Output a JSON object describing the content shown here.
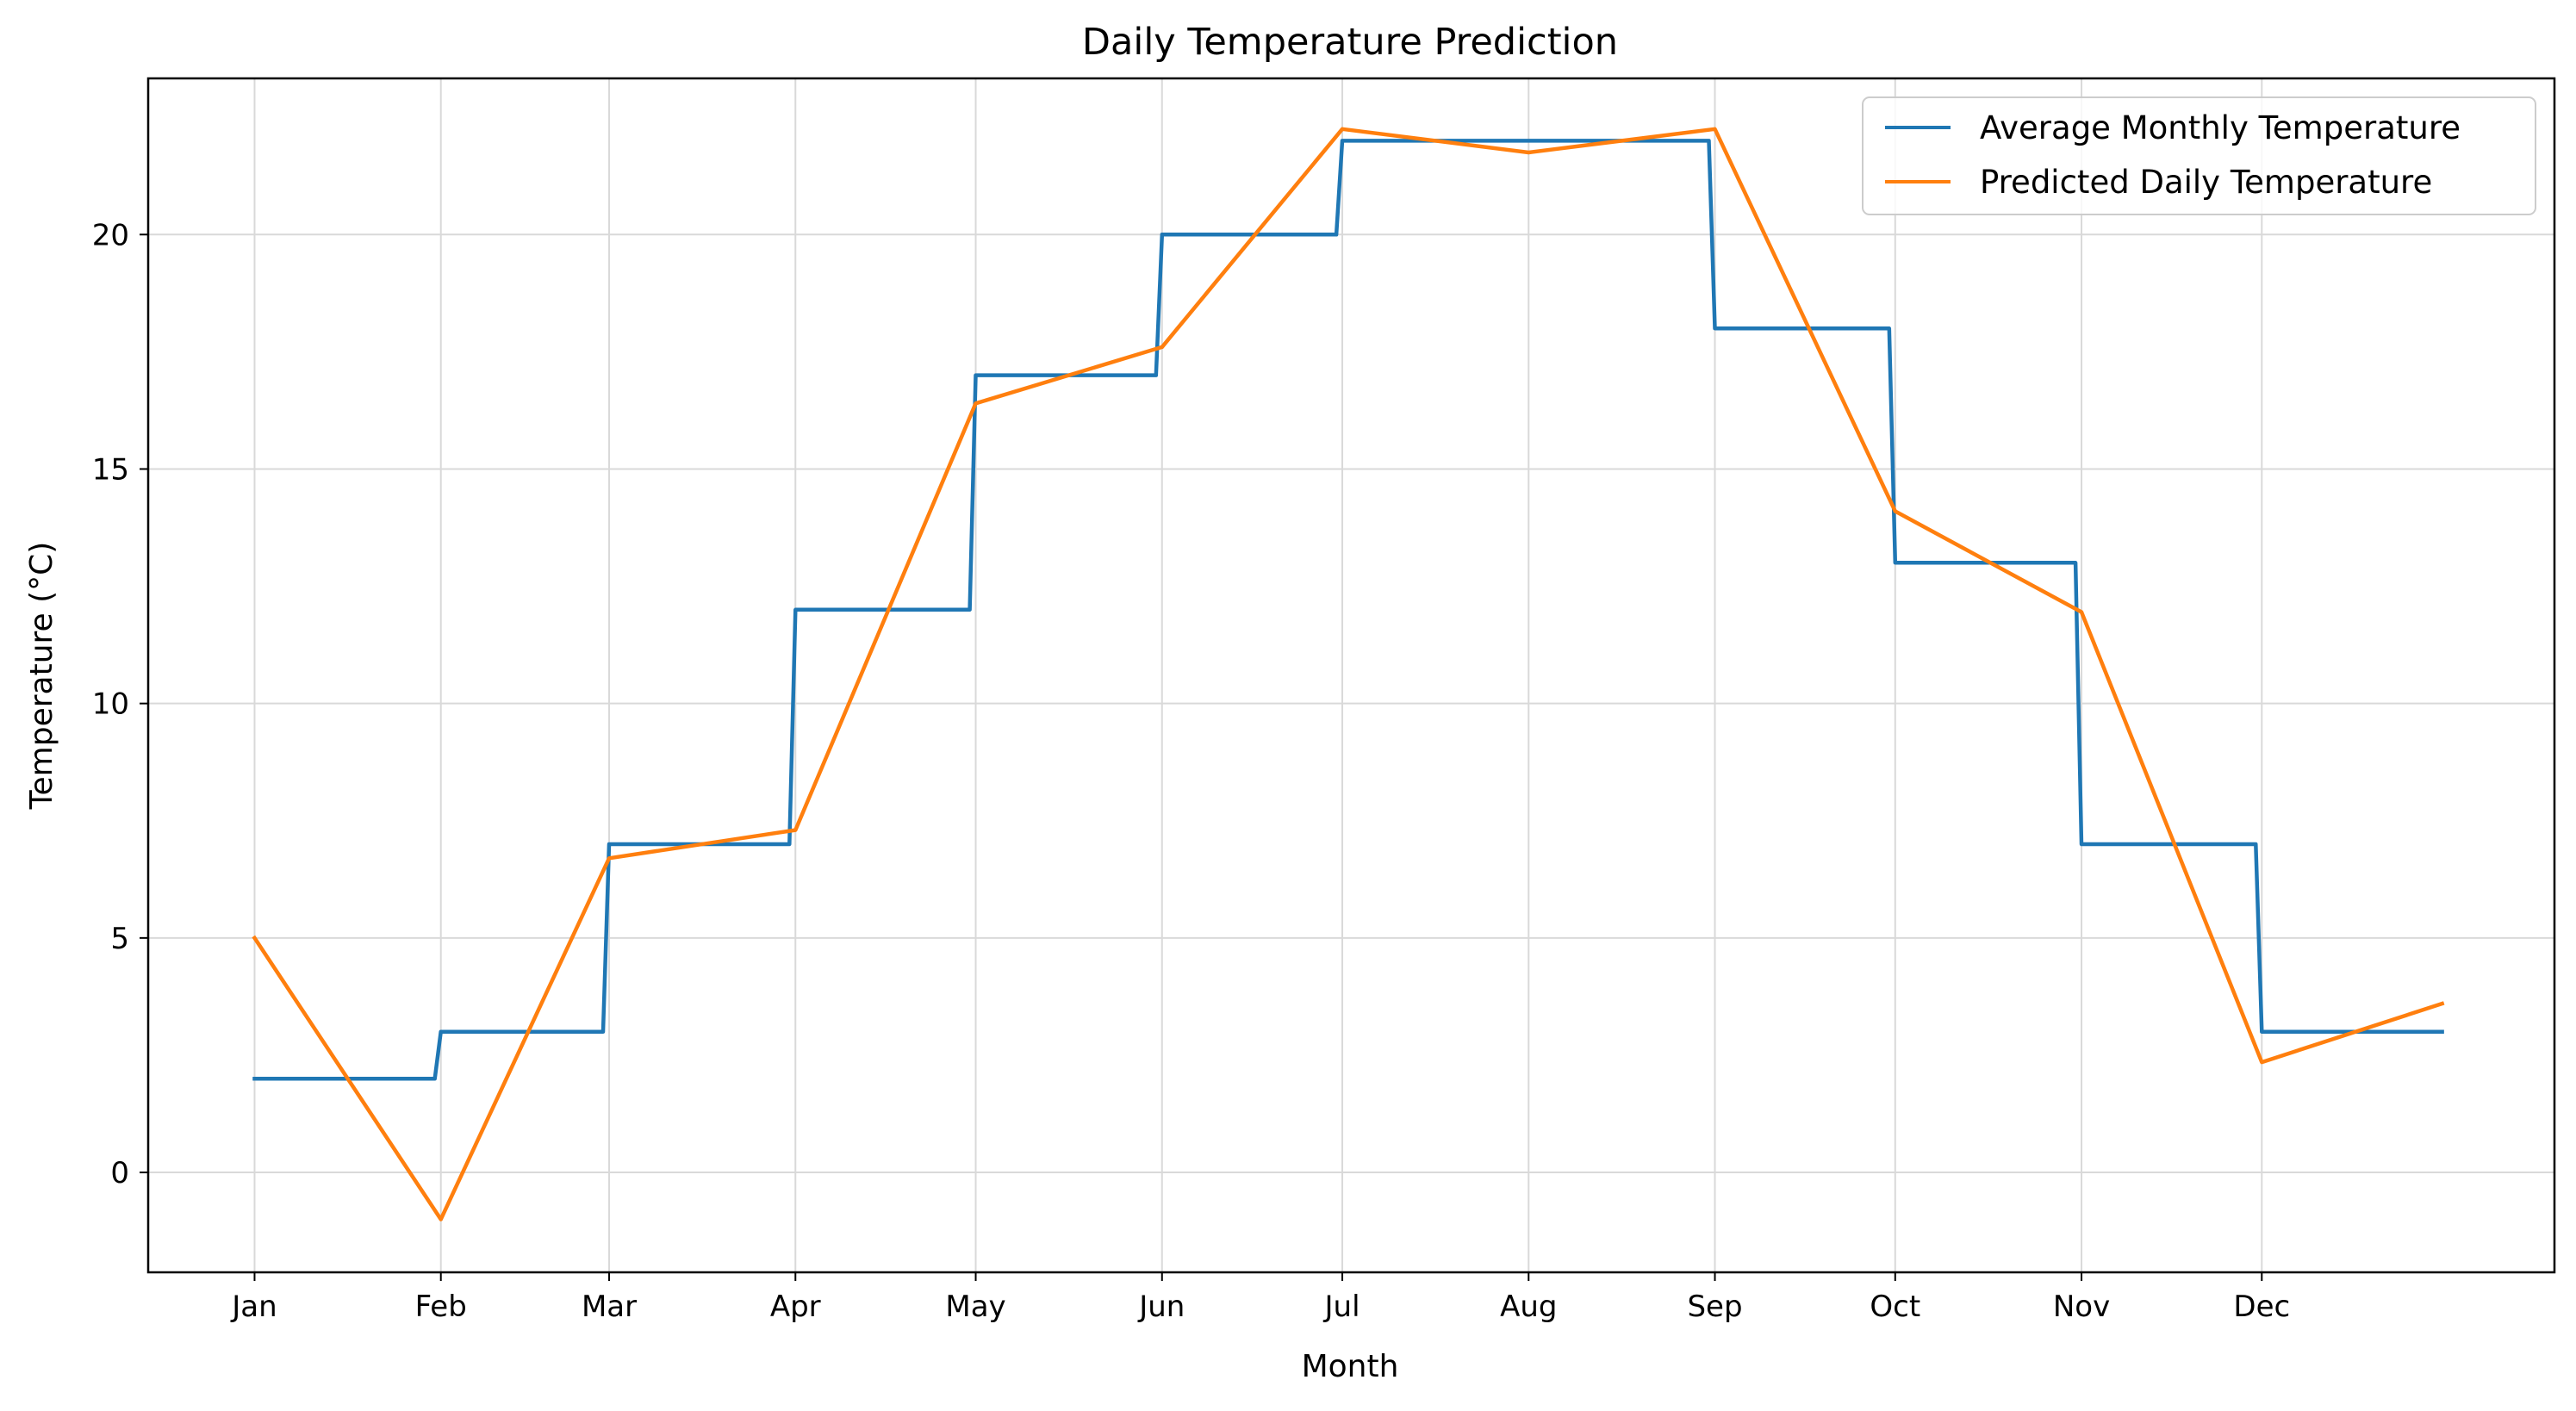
{
  "chart_data": {
    "type": "line",
    "title": "Daily Temperature Prediction",
    "xlabel": "Month",
    "ylabel": "Temperature (°C)",
    "xlim": [
      -17.7,
      382.7
    ],
    "ylim": [
      -2.13,
      23.33
    ],
    "x_ticks": [
      {
        "day": 0,
        "label": "Jan"
      },
      {
        "day": 31,
        "label": "Feb"
      },
      {
        "day": 59,
        "label": "Mar"
      },
      {
        "day": 90,
        "label": "Apr"
      },
      {
        "day": 120,
        "label": "May"
      },
      {
        "day": 151,
        "label": "Jun"
      },
      {
        "day": 181,
        "label": "Jul"
      },
      {
        "day": 212,
        "label": "Aug"
      },
      {
        "day": 243,
        "label": "Sep"
      },
      {
        "day": 273,
        "label": "Oct"
      },
      {
        "day": 304,
        "label": "Nov"
      },
      {
        "day": 334,
        "label": "Dec"
      }
    ],
    "y_ticks": [
      0,
      5,
      10,
      15,
      20
    ],
    "grid": true,
    "legend_position": "top-right",
    "series": [
      {
        "name": "Average Monthly Temperature",
        "color": "#1f77b4",
        "style": "step",
        "x": [
          0,
          30,
          31,
          58,
          59,
          89,
          90,
          119,
          120,
          150,
          151,
          180,
          181,
          242,
          243,
          272,
          273,
          303,
          304,
          333,
          334,
          364
        ],
        "y": [
          2,
          2,
          3,
          3,
          7,
          7,
          12,
          12,
          17,
          17,
          20,
          20,
          22,
          22,
          18,
          18,
          13,
          13,
          7,
          7,
          3,
          3
        ]
      },
      {
        "name": "Predicted Daily Temperature",
        "color": "#ff7f0e",
        "style": "line",
        "x": [
          0,
          31,
          59,
          90,
          120,
          151,
          181,
          212,
          243,
          273,
          304,
          334,
          364
        ],
        "y": [
          5.0,
          -1.0,
          6.7,
          7.3,
          16.4,
          17.6,
          22.25,
          21.75,
          22.25,
          14.1,
          11.95,
          2.35,
          3.6
        ]
      }
    ]
  }
}
